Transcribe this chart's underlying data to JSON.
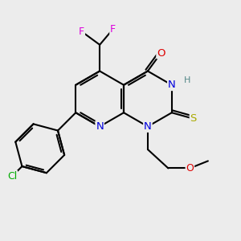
{
  "bg_color": "#ececec",
  "colors": {
    "C": "#000000",
    "N": "#0000dd",
    "O": "#dd0000",
    "S": "#aaaa00",
    "F": "#dd00dd",
    "Cl": "#00aa00",
    "H": "#558888"
  },
  "bond_lw": 1.5,
  "font_size": 9.5
}
